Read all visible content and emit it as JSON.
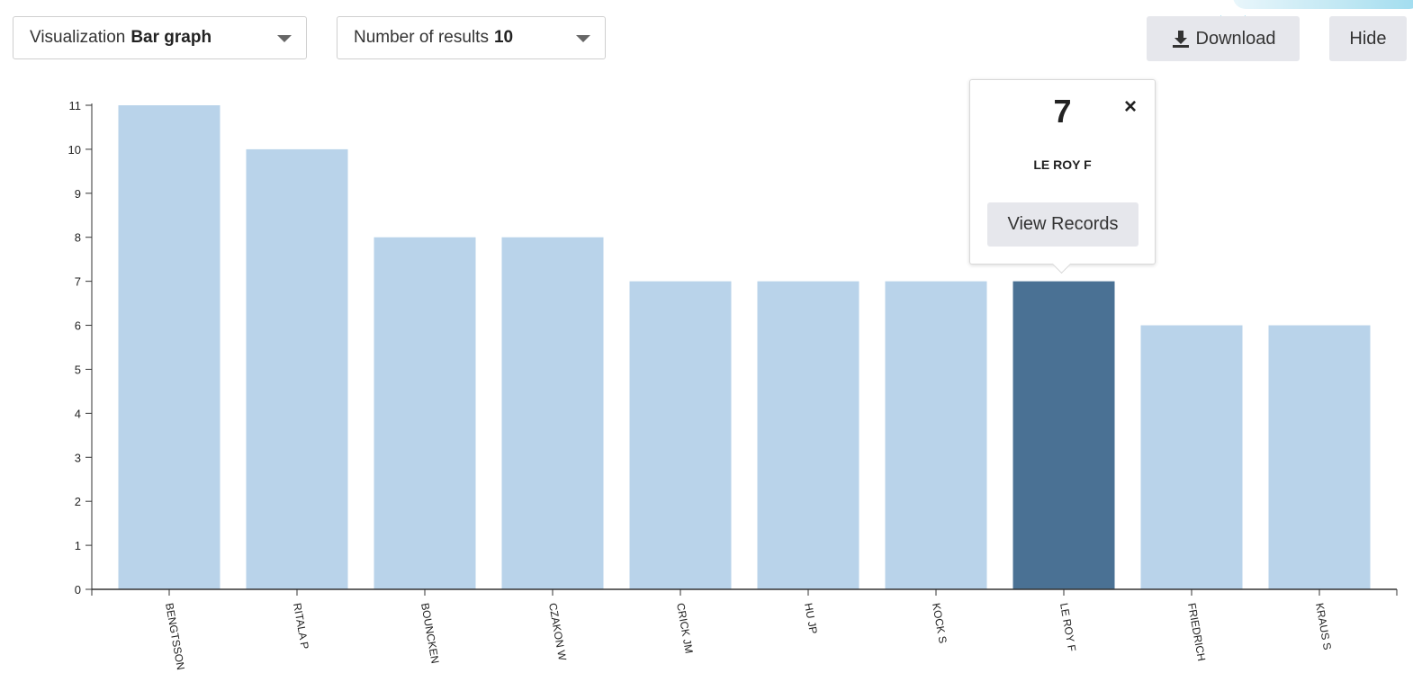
{
  "toolbar": {
    "visualization_label": "Visualization",
    "visualization_value": "Bar graph",
    "results_label": "Number of results",
    "results_value": "10",
    "download_label": "Download",
    "hide_label": "Hide"
  },
  "popover": {
    "value": "7",
    "close": "×",
    "label": "LE ROY F",
    "button": "View Records"
  },
  "colors": {
    "bar": "#b9d3ea",
    "bar_selected": "#4a7194",
    "axis": "#333333"
  },
  "icons": {
    "download": "download-icon",
    "caret": "chevron-down-icon",
    "close": "close-icon"
  },
  "chart_data": {
    "type": "bar",
    "categories": [
      "BENGTSSON",
      "RITALA P",
      "BOUNCKEN",
      "CZAKON W",
      "CRICK JM",
      "HU JP",
      "KOCK S",
      "LE ROY F",
      "FRIEDRICH",
      "KRAUS S"
    ],
    "values": [
      11,
      10,
      8,
      8,
      7,
      7,
      7,
      7,
      6,
      6
    ],
    "selected_index": 7,
    "yticks": [
      0,
      1,
      2,
      3,
      4,
      5,
      6,
      7,
      8,
      9,
      10,
      11
    ],
    "ylim": [
      0,
      11
    ],
    "grid": false,
    "legend": "none"
  }
}
